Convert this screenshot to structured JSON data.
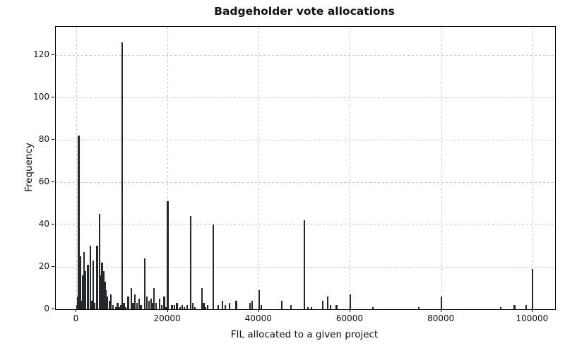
{
  "chart_data": {
    "type": "bar",
    "title": "Badgeholder vote allocations",
    "xlabel": "FIL allocated to a given project",
    "ylabel": "Frequency",
    "xlim": [
      -4550,
      104900
    ],
    "ylim": [
      0,
      133.5
    ],
    "x_ticks": [
      0,
      20000,
      40000,
      60000,
      80000,
      100000
    ],
    "x_tick_labels": [
      "0",
      "20000",
      "40000",
      "60000",
      "80000",
      "100000"
    ],
    "y_ticks": [
      0,
      20,
      40,
      60,
      80,
      100,
      120
    ],
    "y_tick_labels": [
      "0",
      "20",
      "40",
      "60",
      "80",
      "100",
      "120"
    ],
    "grid": true,
    "legend": false,
    "bar_color": "#24272c",
    "grid_color": "#c9c9c9",
    "bin_width_fil": 350,
    "bars_format": "[fil_allocated, frequency]",
    "bars": [
      [
        100,
        2
      ],
      [
        250,
        6
      ],
      [
        500,
        82
      ],
      [
        800,
        25
      ],
      [
        1100,
        4
      ],
      [
        1400,
        16
      ],
      [
        1700,
        27
      ],
      [
        2000,
        18
      ],
      [
        2500,
        21
      ],
      [
        3000,
        30
      ],
      [
        3300,
        4
      ],
      [
        3600,
        23
      ],
      [
        4000,
        3
      ],
      [
        4500,
        30
      ],
      [
        5000,
        45
      ],
      [
        5300,
        16
      ],
      [
        5600,
        22
      ],
      [
        5900,
        18
      ],
      [
        6200,
        13
      ],
      [
        6500,
        9
      ],
      [
        6800,
        6
      ],
      [
        7200,
        4
      ],
      [
        7500,
        7
      ],
      [
        8000,
        2
      ],
      [
        8600,
        1
      ],
      [
        9000,
        3
      ],
      [
        9400,
        1
      ],
      [
        9700,
        2
      ],
      [
        10000,
        126
      ],
      [
        10400,
        3
      ],
      [
        10800,
        1
      ],
      [
        11300,
        6
      ],
      [
        12000,
        10
      ],
      [
        12400,
        3
      ],
      [
        12800,
        7
      ],
      [
        13300,
        3
      ],
      [
        13700,
        5
      ],
      [
        14100,
        2
      ],
      [
        15000,
        24
      ],
      [
        15400,
        6
      ],
      [
        15900,
        4
      ],
      [
        16400,
        5
      ],
      [
        16700,
        3
      ],
      [
        17000,
        10
      ],
      [
        17400,
        3
      ],
      [
        18200,
        5
      ],
      [
        18700,
        2
      ],
      [
        19200,
        6
      ],
      [
        19600,
        1
      ],
      [
        20000,
        51
      ],
      [
        20900,
        2
      ],
      [
        21500,
        2
      ],
      [
        22000,
        3
      ],
      [
        22700,
        1
      ],
      [
        23200,
        2
      ],
      [
        23600,
        1
      ],
      [
        24200,
        2
      ],
      [
        25000,
        44
      ],
      [
        25500,
        3
      ],
      [
        25900,
        1
      ],
      [
        27500,
        10
      ],
      [
        27900,
        3
      ],
      [
        28300,
        1
      ],
      [
        28700,
        2
      ],
      [
        30000,
        40
      ],
      [
        31000,
        2
      ],
      [
        32000,
        4
      ],
      [
        32600,
        2
      ],
      [
        33500,
        3
      ],
      [
        35000,
        4
      ],
      [
        38000,
        3
      ],
      [
        38500,
        4
      ],
      [
        40000,
        9
      ],
      [
        40500,
        2
      ],
      [
        45000,
        4
      ],
      [
        47000,
        2
      ],
      [
        50000,
        42
      ],
      [
        50700,
        1
      ],
      [
        51500,
        1
      ],
      [
        54000,
        4
      ],
      [
        55000,
        6
      ],
      [
        55700,
        2
      ],
      [
        57000,
        2
      ],
      [
        60000,
        7
      ],
      [
        65000,
        1
      ],
      [
        75000,
        1
      ],
      [
        80000,
        6
      ],
      [
        93000,
        1
      ],
      [
        96000,
        2
      ],
      [
        98500,
        2
      ],
      [
        100000,
        19
      ]
    ]
  }
}
